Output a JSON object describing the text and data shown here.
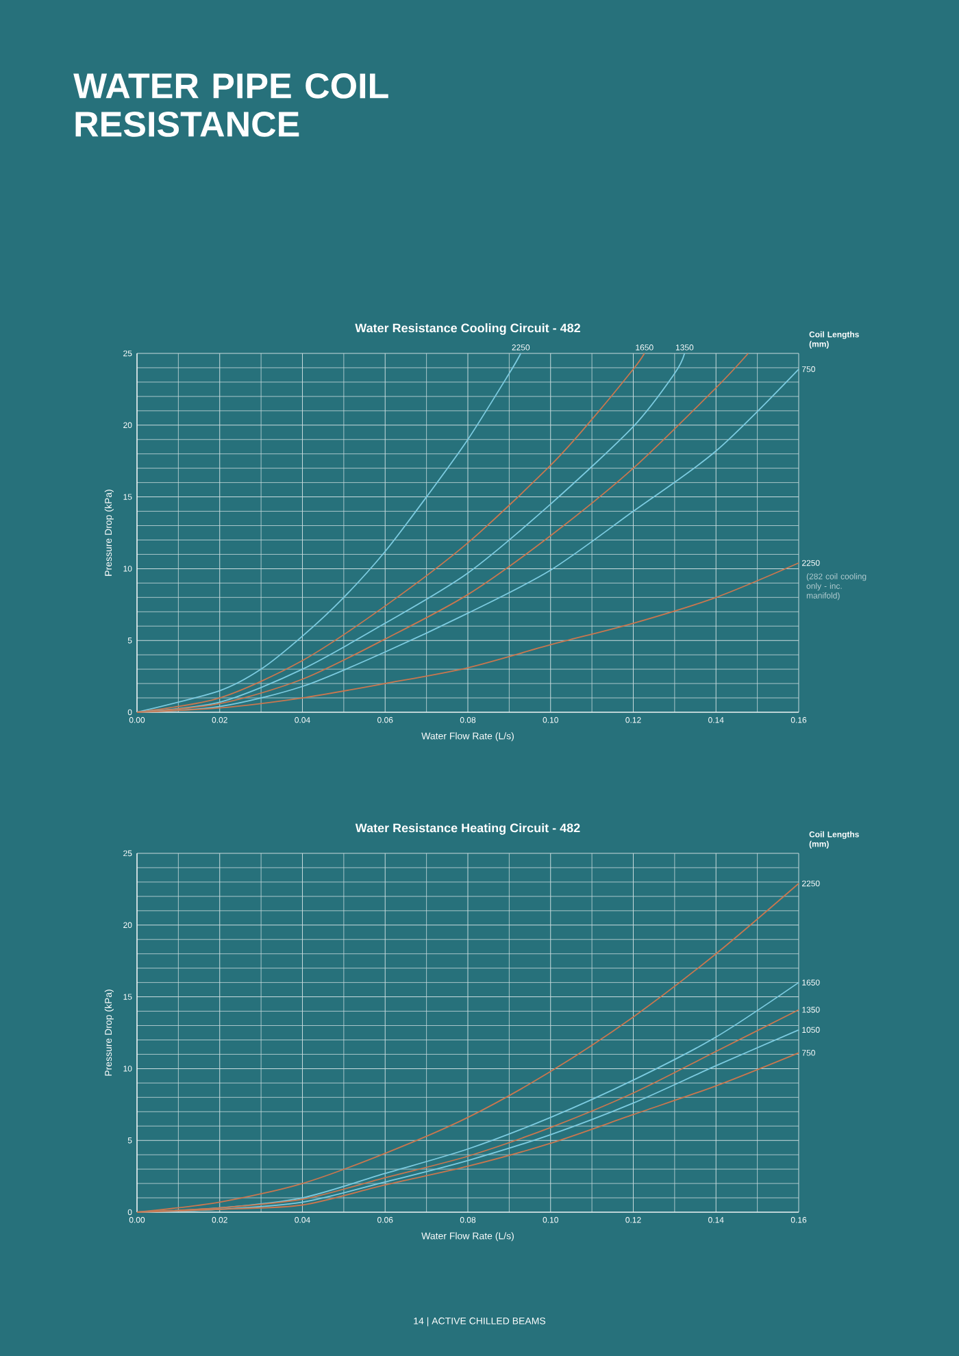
{
  "chart_data": [
    {
      "type": "line",
      "title": "Water Resistance Cooling Circuit - 482",
      "xlabel": "Water Flow Rate (L/s)",
      "ylabel": "Pressure Drop (kPa)",
      "legend_title": "Coil Lengths (mm)",
      "xlim": [
        0,
        0.16
      ],
      "ylim": [
        0,
        25
      ],
      "xticks": [
        {
          "value": 0,
          "label": "0.00"
        },
        {
          "value": 0.02,
          "label": "0.02"
        },
        {
          "value": 0.04,
          "label": "0.04"
        },
        {
          "value": 0.06,
          "label": "0.06"
        },
        {
          "value": 0.08,
          "label": "0.08"
        },
        {
          "value": 0.1,
          "label": "0.10"
        },
        {
          "value": 0.12,
          "label": "0.12"
        },
        {
          "value": 0.14,
          "label": "0.14"
        },
        {
          "value": 0.16,
          "label": "0.16"
        }
      ],
      "yticks": [
        0,
        5,
        10,
        15,
        20,
        25
      ],
      "grid": true,
      "series": [
        {
          "name": "2250",
          "color": "#7ccbe0",
          "x": [
            0,
            0.02,
            0.03,
            0.04,
            0.05,
            0.06,
            0.07,
            0.08,
            0.09,
            0.0928
          ],
          "values": [
            0,
            1.5,
            3.0,
            5.3,
            8.0,
            11.2,
            15.0,
            19.0,
            23.6,
            25
          ]
        },
        {
          "name": "1650",
          "color": "#c9774f",
          "x": [
            0,
            0.02,
            0.04,
            0.06,
            0.08,
            0.1,
            0.11,
            0.12,
            0.1227
          ],
          "values": [
            0,
            1.0,
            3.6,
            7.4,
            11.8,
            17.2,
            20.4,
            23.9,
            25
          ]
        },
        {
          "name": "1350",
          "color": "#7ccbe0",
          "x": [
            0,
            0.02,
            0.04,
            0.06,
            0.08,
            0.1,
            0.12,
            0.13,
            0.1324
          ],
          "values": [
            0,
            0.7,
            3.0,
            6.2,
            9.7,
            14.5,
            19.9,
            23.6,
            25
          ]
        },
        {
          "color": "#c9774f",
          "x": [
            0,
            0.02,
            0.04,
            0.06,
            0.08,
            0.1,
            0.12,
            0.14,
            0.1478
          ],
          "values": [
            0,
            0.6,
            2.3,
            5.1,
            8.2,
            12.3,
            17.0,
            22.6,
            25
          ]
        },
        {
          "name": "750",
          "color": "#7ccbe0",
          "x": [
            0,
            0.02,
            0.04,
            0.06,
            0.08,
            0.1,
            0.12,
            0.14,
            0.16
          ],
          "values": [
            0,
            0.4,
            1.8,
            4.2,
            6.9,
            9.9,
            14.0,
            18.2,
            23.9
          ]
        },
        {
          "name": "2250",
          "color": "#c9774f",
          "x": [
            0,
            0.02,
            0.04,
            0.06,
            0.08,
            0.1,
            0.12,
            0.14,
            0.16
          ],
          "values": [
            0,
            0.3,
            1.0,
            2.0,
            3.1,
            4.7,
            6.2,
            8.0,
            10.4
          ]
        }
      ],
      "annotations": [
        "WATER PIPE COIL RESISTANCE",
        {
          "text": "(282 coil cooling only - inc. manifold)",
          "x": 0.16,
          "y": 10.4
        }
      ]
    },
    {
      "type": "line",
      "title": "Water Resistance Heating Circuit - 482",
      "xlabel": "Water Flow Rate (L/s)",
      "ylabel": "Pressure Drop (kPa)",
      "legend_title": "Coil Lengths (mm)",
      "xlim": [
        0,
        0.16
      ],
      "ylim": [
        0,
        25
      ],
      "xticks": [
        {
          "value": 0,
          "label": "0.00"
        },
        {
          "value": 0.02,
          "label": "0.02"
        },
        {
          "value": 0.04,
          "label": "0.04"
        },
        {
          "value": 0.06,
          "label": "0.06"
        },
        {
          "value": 0.08,
          "label": "0.08"
        },
        {
          "value": 0.1,
          "label": "0.10"
        },
        {
          "value": 0.12,
          "label": "0.12"
        },
        {
          "value": 0.14,
          "label": "0.14"
        },
        {
          "value": 0.16,
          "label": "0.16"
        }
      ],
      "yticks": [
        0,
        5,
        10,
        15,
        20,
        25
      ],
      "grid": true,
      "series": [
        {
          "name": "2250",
          "color": "#c9774f",
          "x": [
            0,
            0.02,
            0.04,
            0.06,
            0.08,
            0.1,
            0.12,
            0.14,
            0.16
          ],
          "values": [
            0,
            0.7,
            2.0,
            4.1,
            6.6,
            9.8,
            13.6,
            18.0,
            22.9
          ]
        },
        {
          "name": "1650",
          "color": "#7ccbe0",
          "x": [
            0,
            0.02,
            0.04,
            0.06,
            0.08,
            0.1,
            0.12,
            0.14,
            0.16
          ],
          "values": [
            0,
            0.3,
            1.0,
            2.7,
            4.4,
            6.6,
            9.2,
            12.2,
            16.0
          ]
        },
        {
          "name": "1350",
          "color": "#c9774f",
          "x": [
            0,
            0.02,
            0.04,
            0.06,
            0.08,
            0.1,
            0.12,
            0.14,
            0.16
          ],
          "values": [
            0,
            0.3,
            0.9,
            2.4,
            3.9,
            5.9,
            8.3,
            11.2,
            14.1
          ]
        },
        {
          "name": "1050",
          "color": "#7ccbe0",
          "x": [
            0,
            0.02,
            0.04,
            0.06,
            0.08,
            0.1,
            0.12,
            0.14,
            0.16
          ],
          "values": [
            0,
            0.2,
            0.7,
            2.1,
            3.6,
            5.4,
            7.6,
            10.2,
            12.7
          ]
        },
        {
          "name": "750",
          "color": "#c9774f",
          "x": [
            0,
            0.02,
            0.04,
            0.06,
            0.08,
            0.1,
            0.12,
            0.14,
            0.16
          ],
          "values": [
            0,
            0.2,
            0.5,
            1.9,
            3.2,
            4.8,
            6.8,
            8.8,
            11.1
          ]
        }
      ],
      "annotations": [
        "14 | ACTIVE CHILLED BEAMS"
      ]
    }
  ]
}
